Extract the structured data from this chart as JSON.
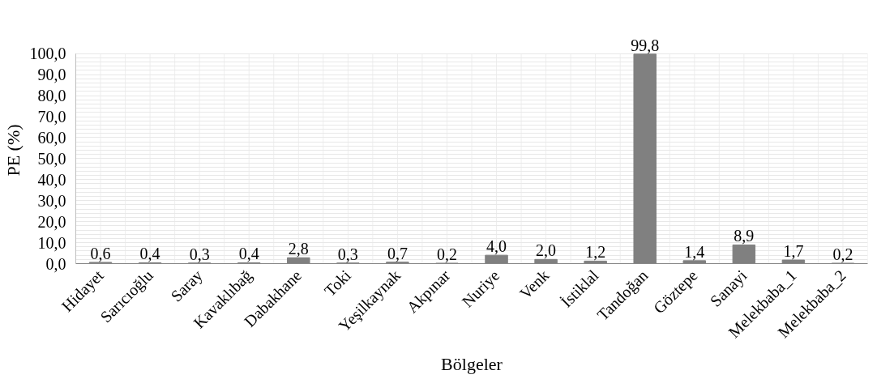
{
  "chart_data": {
    "type": "bar",
    "xlabel": "Bölgeler",
    "ylabel": "PE (%)",
    "categories": [
      "Hidayet",
      "Sarıcıoğlu",
      "Saray",
      "Kavaklıbağ",
      "Dabakhane",
      "Toki",
      "Yeşilkaynak",
      "Akpınar",
      "Nuriye",
      "Venk",
      "İstiklal",
      "Tandoğan",
      "Göztepe",
      "Sanayi",
      "Melekbaba_1",
      "Melekbaba_2"
    ],
    "values": [
      0.6,
      0.4,
      0.3,
      0.4,
      2.8,
      0.3,
      0.7,
      0.2,
      4.0,
      2.0,
      1.2,
      99.8,
      1.4,
      8.9,
      1.7,
      0.2
    ],
    "value_labels": [
      "0,6",
      "0,4",
      "0,3",
      "0,4",
      "2,8",
      "0,3",
      "0,7",
      "0,2",
      "4,0",
      "2,0",
      "1,2",
      "99,8",
      "1,4",
      "8,9",
      "1,7",
      "0,2"
    ],
    "color": "#808080",
    "ylim": [
      0,
      100
    ],
    "yticks": [
      {
        "value": 0,
        "label": "0,0"
      },
      {
        "value": 10,
        "label": "10,0"
      },
      {
        "value": 20,
        "label": "20,0"
      },
      {
        "value": 30,
        "label": "30,0"
      },
      {
        "value": 40,
        "label": "40,0"
      },
      {
        "value": 50,
        "label": "50,0"
      },
      {
        "value": 60,
        "label": "60,0"
      },
      {
        "value": 70,
        "label": "70,0"
      },
      {
        "value": 80,
        "label": "80,0"
      },
      {
        "value": 90,
        "label": "90,0"
      },
      {
        "value": 100,
        "label": "100,0"
      }
    ],
    "grid": true
  }
}
